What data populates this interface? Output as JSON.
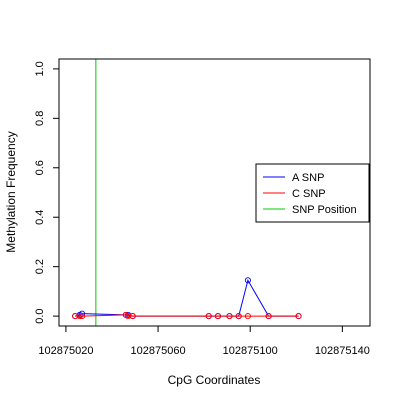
{
  "chart_data": {
    "type": "line",
    "title": "",
    "xlabel": "CpG Coordinates",
    "ylabel": "Methylation Frequency",
    "xlim": [
      102875017,
      102875152
    ],
    "ylim": [
      -0.04,
      1.04
    ],
    "x_ticks": [
      102875020,
      102875060,
      102875100,
      102875140
    ],
    "y_ticks": [
      0.0,
      0.2,
      0.4,
      0.6,
      0.8,
      1.0
    ],
    "y_tick_labels": [
      "0.0",
      "0.2",
      "0.4",
      "0.6",
      "0.8",
      "1.0"
    ],
    "grid": false,
    "legend_position": "right",
    "series": [
      {
        "name": "A SNP",
        "color": "#0000ff",
        "x": [
          102875024,
          102875026,
          102875027,
          102875046,
          102875047,
          102875049,
          102875082,
          102875086,
          102875091,
          102875095,
          102875099,
          102875108,
          102875121
        ],
        "y": [
          0.0,
          0.005,
          0.01,
          0.005,
          0.005,
          0.0,
          0.0,
          0.0,
          0.0,
          0.0,
          0.145,
          0.0,
          0.0
        ]
      },
      {
        "name": "C SNP",
        "color": "#ff0000",
        "x": [
          102875024,
          102875026,
          102875027,
          102875046,
          102875047,
          102875049,
          102875082,
          102875086,
          102875091,
          102875095,
          102875099,
          102875108,
          102875121
        ],
        "y": [
          0.0,
          0.0,
          0.0,
          0.005,
          0.0,
          0.0,
          0.0,
          0.0,
          0.0,
          0.0,
          0.0,
          0.0,
          0.0
        ]
      }
    ],
    "snp_position": {
      "name": "SNP Position",
      "color": "#00cc00",
      "x": 102875033
    }
  }
}
